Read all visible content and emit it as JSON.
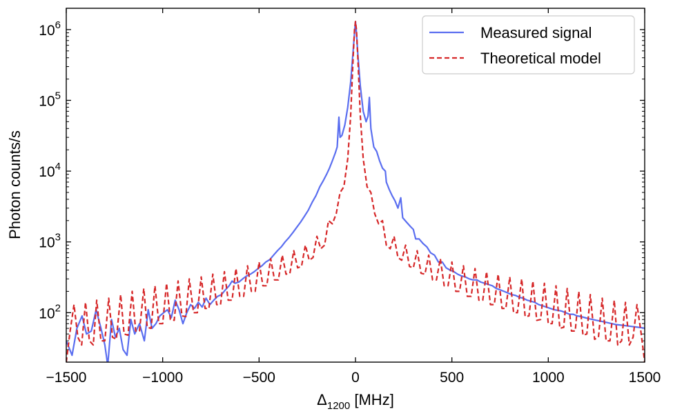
{
  "chart_data": {
    "type": "line",
    "title": "",
    "xlabel_symbol": "Δ",
    "xlabel_subscript": "1200",
    "xlabel_suffix": " [MHz]",
    "ylabel": "Photon counts/s",
    "xlim": [
      -1500,
      1500
    ],
    "ylim": [
      20,
      2000000
    ],
    "yscale": "log",
    "x_ticks": [
      -1500,
      -1000,
      -500,
      0,
      500,
      1000,
      1500
    ],
    "x_tick_labels": [
      "−1500",
      "−1000",
      "−500",
      "0",
      "500",
      "1000",
      "1500"
    ],
    "y_ticks": [
      100,
      1000,
      10000,
      100000,
      1000000
    ],
    "y_tick_base": "10",
    "y_tick_exponents": [
      "2",
      "3",
      "4",
      "5",
      "6"
    ],
    "legend_position": "top-right",
    "peak_spacing_mhz": 78,
    "series": [
      {
        "name": "Measured signal",
        "color": "#5a6ef0",
        "style": "solid",
        "points": [
          [
            -1500,
            40
          ],
          [
            -1470,
            25
          ],
          [
            -1445,
            60
          ],
          [
            -1418,
            90
          ],
          [
            -1395,
            50
          ],
          [
            -1370,
            55
          ],
          [
            -1345,
            110
          ],
          [
            -1320,
            60
          ],
          [
            -1300,
            35
          ],
          [
            -1285,
            18
          ],
          [
            -1265,
            80
          ],
          [
            -1245,
            45
          ],
          [
            -1225,
            60
          ],
          [
            -1205,
            30
          ],
          [
            -1185,
            25
          ],
          [
            -1165,
            80
          ],
          [
            -1145,
            50
          ],
          [
            -1120,
            70
          ],
          [
            -1095,
            40
          ],
          [
            -1075,
            110
          ],
          [
            -1055,
            60
          ],
          [
            -1035,
            70
          ],
          [
            -1015,
            90
          ],
          [
            -995,
            100
          ],
          [
            -975,
            110
          ],
          [
            -955,
            85
          ],
          [
            -935,
            150
          ],
          [
            -915,
            110
          ],
          [
            -895,
            70
          ],
          [
            -875,
            100
          ],
          [
            -855,
            130
          ],
          [
            -835,
            115
          ],
          [
            -815,
            140
          ],
          [
            -795,
            120
          ],
          [
            -775,
            160
          ],
          [
            -755,
            130
          ],
          [
            -735,
            150
          ],
          [
            -715,
            170
          ],
          [
            -695,
            180
          ],
          [
            -675,
            210
          ],
          [
            -655,
            240
          ],
          [
            -640,
            280
          ],
          [
            -625,
            260
          ],
          [
            -605,
            270
          ],
          [
            -585,
            300
          ],
          [
            -565,
            330
          ],
          [
            -545,
            350
          ],
          [
            -525,
            380
          ],
          [
            -505,
            420
          ],
          [
            -485,
            460
          ],
          [
            -465,
            520
          ],
          [
            -445,
            560
          ],
          [
            -425,
            650
          ],
          [
            -405,
            750
          ],
          [
            -385,
            850
          ],
          [
            -365,
            1000
          ],
          [
            -345,
            1150
          ],
          [
            -325,
            1350
          ],
          [
            -305,
            1600
          ],
          [
            -285,
            1900
          ],
          [
            -265,
            2300
          ],
          [
            -245,
            2800
          ],
          [
            -225,
            3600
          ],
          [
            -205,
            4500
          ],
          [
            -185,
            6000
          ],
          [
            -165,
            7500
          ],
          [
            -150,
            9000
          ],
          [
            -135,
            11000
          ],
          [
            -120,
            14000
          ],
          [
            -105,
            18000
          ],
          [
            -95,
            22000
          ],
          [
            -86,
            58000
          ],
          [
            -80,
            30000
          ],
          [
            -70,
            32000
          ],
          [
            -55,
            45000
          ],
          [
            -40,
            80000
          ],
          [
            -25,
            180000
          ],
          [
            -12,
            500000
          ],
          [
            -5,
            900000
          ],
          [
            0,
            1300000
          ],
          [
            5,
            900000
          ],
          [
            12,
            450000
          ],
          [
            25,
            160000
          ],
          [
            40,
            70000
          ],
          [
            55,
            50000
          ],
          [
            65,
            60000
          ],
          [
            72,
            110000
          ],
          [
            80,
            40000
          ],
          [
            95,
            22000
          ],
          [
            110,
            19000
          ],
          [
            125,
            14000
          ],
          [
            140,
            11000
          ],
          [
            155,
            10000
          ],
          [
            160,
            7000
          ],
          [
            175,
            5500
          ],
          [
            190,
            4500
          ],
          [
            205,
            3800
          ],
          [
            220,
            3000
          ],
          [
            235,
            4200
          ],
          [
            245,
            2200
          ],
          [
            265,
            1900
          ],
          [
            285,
            1650
          ],
          [
            300,
            1500
          ],
          [
            312,
            1100
          ],
          [
            330,
            1100
          ],
          [
            350,
            950
          ],
          [
            370,
            850
          ],
          [
            390,
            700
          ],
          [
            410,
            650
          ],
          [
            430,
            520
          ],
          [
            450,
            520
          ],
          [
            470,
            430
          ],
          [
            490,
            400
          ],
          [
            510,
            380
          ],
          [
            530,
            350
          ],
          [
            550,
            330
          ],
          [
            570,
            320
          ],
          [
            590,
            300
          ],
          [
            610,
            290
          ],
          [
            630,
            290
          ],
          [
            650,
            270
          ],
          [
            670,
            260
          ],
          [
            690,
            250
          ],
          [
            710,
            240
          ],
          [
            730,
            220
          ],
          [
            750,
            210
          ],
          [
            770,
            200
          ],
          [
            790,
            190
          ],
          [
            810,
            180
          ],
          [
            830,
            175
          ],
          [
            850,
            165
          ],
          [
            870,
            160
          ],
          [
            890,
            150
          ],
          [
            910,
            145
          ],
          [
            930,
            140
          ],
          [
            950,
            130
          ],
          [
            970,
            125
          ],
          [
            990,
            120
          ],
          [
            1010,
            115
          ],
          [
            1030,
            110
          ],
          [
            1050,
            108
          ],
          [
            1070,
            105
          ],
          [
            1090,
            100
          ],
          [
            1110,
            95
          ],
          [
            1130,
            95
          ],
          [
            1150,
            90
          ],
          [
            1170,
            88
          ],
          [
            1190,
            85
          ],
          [
            1210,
            82
          ],
          [
            1230,
            80
          ],
          [
            1250,
            78
          ],
          [
            1270,
            76
          ],
          [
            1290,
            74
          ],
          [
            1310,
            72
          ],
          [
            1330,
            70
          ],
          [
            1350,
            68
          ],
          [
            1370,
            67
          ],
          [
            1390,
            66
          ],
          [
            1410,
            65
          ],
          [
            1430,
            64
          ],
          [
            1450,
            63
          ],
          [
            1470,
            62
          ],
          [
            1490,
            61
          ],
          [
            1500,
            60
          ]
        ]
      },
      {
        "name": "Theoretical model",
        "color": "#d62728",
        "style": "dashed",
        "points": [
          [
            -1500,
            20
          ],
          [
            -1480,
            55
          ],
          [
            -1460,
            130
          ],
          [
            -1440,
            45
          ],
          [
            -1420,
            35
          ],
          [
            -1400,
            140
          ],
          [
            -1380,
            40
          ],
          [
            -1360,
            35
          ],
          [
            -1342,
            150
          ],
          [
            -1320,
            40
          ],
          [
            -1300,
            40
          ],
          [
            -1280,
            160
          ],
          [
            -1260,
            45
          ],
          [
            -1240,
            42
          ],
          [
            -1218,
            180
          ],
          [
            -1200,
            50
          ],
          [
            -1180,
            48
          ],
          [
            -1158,
            200
          ],
          [
            -1140,
            55
          ],
          [
            -1120,
            55
          ],
          [
            -1098,
            220
          ],
          [
            -1080,
            62
          ],
          [
            -1060,
            60
          ],
          [
            -1040,
            240
          ],
          [
            -1020,
            70
          ],
          [
            -1000,
            70
          ],
          [
            -980,
            260
          ],
          [
            -960,
            80
          ],
          [
            -940,
            78
          ],
          [
            -920,
            280
          ],
          [
            -900,
            90
          ],
          [
            -880,
            88
          ],
          [
            -862,
            300
          ],
          [
            -840,
            100
          ],
          [
            -820,
            100
          ],
          [
            -800,
            320
          ],
          [
            -780,
            115
          ],
          [
            -760,
            115
          ],
          [
            -740,
            350
          ],
          [
            -720,
            130
          ],
          [
            -700,
            130
          ],
          [
            -680,
            380
          ],
          [
            -660,
            150
          ],
          [
            -640,
            150
          ],
          [
            -620,
            420
          ],
          [
            -600,
            170
          ],
          [
            -580,
            170
          ],
          [
            -560,
            460
          ],
          [
            -540,
            200
          ],
          [
            -520,
            200
          ],
          [
            -500,
            520
          ],
          [
            -480,
            240
          ],
          [
            -460,
            240
          ],
          [
            -440,
            580
          ],
          [
            -420,
            290
          ],
          [
            -400,
            290
          ],
          [
            -380,
            650
          ],
          [
            -360,
            350
          ],
          [
            -340,
            360
          ],
          [
            -320,
            750
          ],
          [
            -300,
            430
          ],
          [
            -280,
            450
          ],
          [
            -260,
            900
          ],
          [
            -240,
            550
          ],
          [
            -220,
            600
          ],
          [
            -200,
            1200
          ],
          [
            -180,
            800
          ],
          [
            -160,
            900
          ],
          [
            -140,
            2000
          ],
          [
            -120,
            1800
          ],
          [
            -100,
            2500
          ],
          [
            -80,
            5000
          ],
          [
            -60,
            6000
          ],
          [
            -40,
            15000
          ],
          [
            -25,
            60000
          ],
          [
            -12,
            400000
          ],
          [
            -5,
            1000000
          ],
          [
            0,
            1300000
          ],
          [
            5,
            1000000
          ],
          [
            12,
            400000
          ],
          [
            25,
            60000
          ],
          [
            40,
            15000
          ],
          [
            60,
            6000
          ],
          [
            80,
            5000
          ],
          [
            100,
            2500
          ],
          [
            120,
            1800
          ],
          [
            140,
            2000
          ],
          [
            160,
            900
          ],
          [
            180,
            800
          ],
          [
            200,
            1200
          ],
          [
            220,
            600
          ],
          [
            240,
            550
          ],
          [
            260,
            900
          ],
          [
            280,
            450
          ],
          [
            300,
            430
          ],
          [
            320,
            750
          ],
          [
            340,
            360
          ],
          [
            360,
            350
          ],
          [
            380,
            650
          ],
          [
            400,
            290
          ],
          [
            420,
            290
          ],
          [
            440,
            580
          ],
          [
            460,
            240
          ],
          [
            480,
            240
          ],
          [
            500,
            520
          ],
          [
            520,
            200
          ],
          [
            540,
            200
          ],
          [
            560,
            460
          ],
          [
            580,
            170
          ],
          [
            600,
            170
          ],
          [
            620,
            420
          ],
          [
            640,
            150
          ],
          [
            660,
            150
          ],
          [
            680,
            380
          ],
          [
            700,
            130
          ],
          [
            720,
            130
          ],
          [
            740,
            350
          ],
          [
            760,
            115
          ],
          [
            780,
            115
          ],
          [
            800,
            320
          ],
          [
            820,
            100
          ],
          [
            840,
            100
          ],
          [
            862,
            300
          ],
          [
            880,
            88
          ],
          [
            900,
            90
          ],
          [
            920,
            280
          ],
          [
            940,
            78
          ],
          [
            960,
            80
          ],
          [
            980,
            260
          ],
          [
            1000,
            70
          ],
          [
            1020,
            70
          ],
          [
            1040,
            240
          ],
          [
            1060,
            60
          ],
          [
            1080,
            62
          ],
          [
            1098,
            220
          ],
          [
            1120,
            55
          ],
          [
            1140,
            55
          ],
          [
            1158,
            200
          ],
          [
            1180,
            48
          ],
          [
            1200,
            50
          ],
          [
            1218,
            180
          ],
          [
            1240,
            42
          ],
          [
            1260,
            45
          ],
          [
            1280,
            160
          ],
          [
            1300,
            40
          ],
          [
            1320,
            40
          ],
          [
            1342,
            150
          ],
          [
            1360,
            35
          ],
          [
            1380,
            40
          ],
          [
            1400,
            140
          ],
          [
            1420,
            35
          ],
          [
            1440,
            45
          ],
          [
            1460,
            130
          ],
          [
            1480,
            55
          ],
          [
            1500,
            20
          ]
        ]
      }
    ]
  }
}
